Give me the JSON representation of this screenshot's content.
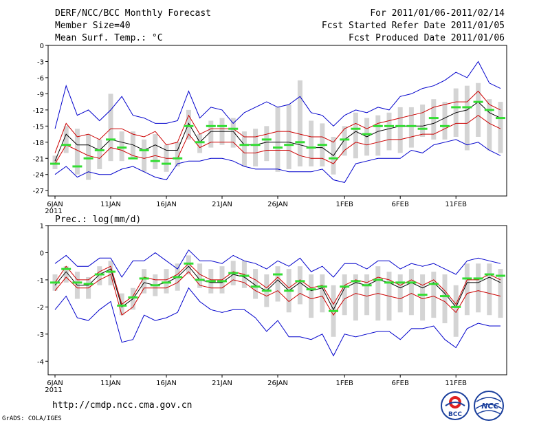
{
  "header": {
    "title": "DERF/NCC/BCC Monthly Forecast",
    "member_size": "Member Size=40",
    "variable1": "Mean Surf. Temp.: °C",
    "period": "For 2011/01/06-2011/02/14",
    "started": "Fcst Started Refer Date 2011/01/05",
    "produced": "Fcst Produced Date 2011/01/06"
  },
  "footer": {
    "url": "http://cmdp.ncc.cma.gov.cn",
    "grads": "GrADS: COLA/IGES",
    "logo1_text": "BCC",
    "logo2_text": "NCC"
  },
  "colors": {
    "envelope": "#0000cc",
    "spread": "#cc0000",
    "mean": "#000000",
    "bars": "#d4d4d4",
    "observed": "#33dd33"
  },
  "chart_data": [
    {
      "type": "line",
      "title": "Mean Surf. Temp.: °C",
      "ylabel": "°C",
      "ylim": [
        -28,
        0
      ],
      "yticks": [
        0,
        -3,
        -6,
        -9,
        -12,
        -15,
        -18,
        -21,
        -24,
        -27
      ],
      "x_days": 40,
      "xticks": [
        {
          "day": 0,
          "label": "6JAN",
          "sub": "2011"
        },
        {
          "day": 5,
          "label": "11JAN"
        },
        {
          "day": 10,
          "label": "16JAN"
        },
        {
          "day": 15,
          "label": "21JAN"
        },
        {
          "day": 20,
          "label": "26JAN"
        },
        {
          "day": 26,
          "label": "1FEB"
        },
        {
          "day": 31,
          "label": "6FEB"
        },
        {
          "day": 36,
          "label": "11FEB"
        }
      ],
      "series": [
        {
          "name": "member max",
          "values": [
            -15.5,
            -7.5,
            -13,
            -12,
            -14,
            -12,
            -9.5,
            -13,
            -13.5,
            -14.5,
            -14.5,
            -14,
            -8.5,
            -13.5,
            -11.5,
            -12,
            -14.5,
            -12.5,
            -11.5,
            -10.5,
            -11.5,
            -11,
            -9.5,
            -12.5,
            -13,
            -15,
            -13,
            -12,
            -12.5,
            -11.5,
            -12,
            -9.5,
            -9,
            -8,
            -7.5,
            -6.5,
            -5,
            -6,
            -3,
            -7,
            -8
          ]
        },
        {
          "name": "upper spread",
          "values": [
            -20,
            -14.5,
            -17,
            -16.5,
            -17.5,
            -15.5,
            -15.5,
            -16.5,
            -17,
            -16,
            -18.5,
            -18,
            -13,
            -16.5,
            -15.5,
            -15.5,
            -15.5,
            -17,
            -17,
            -16.5,
            -16,
            -16,
            -16.5,
            -17,
            -17,
            -18,
            -15.5,
            -14.5,
            -15.5,
            -14.5,
            -14,
            -13.5,
            -13,
            -12.5,
            -11.5,
            -11,
            -10.5,
            -10.5,
            -8.5,
            -11,
            -12
          ]
        },
        {
          "name": "ensemble mean",
          "values": [
            -21.5,
            -16.5,
            -18.5,
            -18.5,
            -19.5,
            -17.5,
            -18,
            -18.5,
            -19.5,
            -18.5,
            -19.5,
            -19.5,
            -14.5,
            -18,
            -16,
            -16,
            -16,
            -18.5,
            -18.5,
            -18,
            -18,
            -18,
            -18.5,
            -19,
            -19,
            -20.5,
            -17.5,
            -16,
            -17,
            -16,
            -15.5,
            -15,
            -15,
            -15,
            -14.5,
            -13.5,
            -12.5,
            -12,
            -10.5,
            -12.5,
            -13.5
          ]
        },
        {
          "name": "lower spread",
          "values": [
            -22,
            -18.5,
            -19.5,
            -20.5,
            -21,
            -19,
            -19.5,
            -20.5,
            -21,
            -20.5,
            -21,
            -21,
            -16.5,
            -19,
            -18,
            -18,
            -18,
            -20,
            -20,
            -19.5,
            -19.5,
            -19.5,
            -20.5,
            -21,
            -21,
            -22,
            -19.5,
            -18,
            -18.5,
            -18,
            -17.5,
            -17.5,
            -17,
            -16.5,
            -16.5,
            -15.5,
            -14.5,
            -14.5,
            -13,
            -14.5,
            -15.5
          ]
        },
        {
          "name": "member min",
          "values": [
            -24,
            -22.5,
            -24.5,
            -23.5,
            -24,
            -24,
            -23,
            -22.5,
            -23.5,
            -24.5,
            -25,
            -22,
            -21.5,
            -21.5,
            -21,
            -21,
            -21.5,
            -22.5,
            -23,
            -23,
            -23,
            -23.5,
            -23.5,
            -23.5,
            -23,
            -25,
            -25.5,
            -22,
            -21.5,
            -21,
            -21,
            -21,
            -19.5,
            -20,
            -18.5,
            -18,
            -17.5,
            -18.5,
            -18,
            -19.5,
            -20.5
          ]
        }
      ],
      "bars_low": [
        -23,
        -20,
        -24,
        -25,
        -23,
        -21.5,
        -21.5,
        -21,
        -23.5,
        -23,
        -23.5,
        -22.5,
        -17.5,
        -20,
        -19,
        -18.5,
        -19,
        -22.5,
        -22.5,
        -21.5,
        -23.5,
        -23,
        -22.5,
        -22.5,
        -22.5,
        -24,
        -20.5,
        -21,
        -20.5,
        -20.5,
        -19.5,
        -20,
        -19,
        -17,
        -17.5,
        -17.5,
        -17,
        -19.5,
        -17,
        -19.5,
        -20
      ],
      "bars_high": [
        -20.5,
        -15,
        -15.5,
        -16.5,
        -17.5,
        -9,
        -16,
        -16,
        -17.5,
        -16.5,
        -18.5,
        -18,
        -12,
        -16.5,
        -14,
        -13.5,
        -13.5,
        -16,
        -15.5,
        -15,
        -11.5,
        -11,
        -6.5,
        -14,
        -14.5,
        -17,
        -15,
        -12.5,
        -13.5,
        -13,
        -12.5,
        -11.5,
        -11.5,
        -11,
        -10,
        -10.5,
        -8,
        -7.5,
        -7,
        -10,
        -10.5
      ],
      "observed": [
        -22,
        -18.5,
        -22.5,
        -21,
        -19.5,
        -17.5,
        -19,
        -21,
        -19.5,
        -21.5,
        -22,
        -21,
        -15,
        -18,
        -15,
        -15,
        -15.5,
        -18.5,
        -18.5,
        -17.5,
        -19,
        -18.5,
        -18,
        -19,
        -18.5,
        -21,
        -17.5,
        -15.5,
        -16.5,
        -15,
        -15,
        -15,
        -15,
        -15.5,
        -13.5,
        -15,
        -11.5,
        -11.5,
        -10.5,
        -12,
        -13.5
      ]
    },
    {
      "type": "line",
      "title": "Prec.: log(mm/d)",
      "ylabel": "log(mm/d)",
      "ylim": [
        -4.5,
        1
      ],
      "yticks": [
        1,
        0,
        -1,
        -2,
        -3,
        -4
      ],
      "x_days": 40,
      "xticks": [
        {
          "day": 0,
          "label": "6JAN",
          "sub": "2011"
        },
        {
          "day": 5,
          "label": "11JAN"
        },
        {
          "day": 10,
          "label": "16JAN"
        },
        {
          "day": 15,
          "label": "21JAN"
        },
        {
          "day": 20,
          "label": "26JAN"
        },
        {
          "day": 26,
          "label": "1FEB"
        },
        {
          "day": 31,
          "label": "6FEB"
        },
        {
          "day": 36,
          "label": "11FEB"
        }
      ],
      "series": [
        {
          "name": "member max",
          "values": [
            -0.4,
            -0.1,
            -0.5,
            -0.5,
            -0.2,
            -0.2,
            -0.9,
            -0.3,
            -0.3,
            0,
            -0.3,
            -0.6,
            0.1,
            -0.3,
            -0.3,
            -0.4,
            -0.1,
            -0.3,
            -0.4,
            -0.6,
            -0.3,
            -0.5,
            -0.2,
            -0.7,
            -0.5,
            -0.9,
            -0.4,
            -0.4,
            -0.6,
            -0.3,
            -0.3,
            -0.6,
            -0.4,
            -0.5,
            -0.4,
            -0.6,
            -0.8,
            -0.3,
            -0.2,
            -0.3,
            -0.4
          ]
        },
        {
          "name": "upper spread",
          "values": [
            -1.1,
            -0.5,
            -1,
            -1,
            -0.7,
            -0.5,
            -1.9,
            -1.6,
            -0.9,
            -1,
            -1,
            -0.8,
            -0.4,
            -0.8,
            -1,
            -1,
            -0.7,
            -0.8,
            -1,
            -1.3,
            -0.9,
            -1.3,
            -1,
            -1.3,
            -1.2,
            -1.9,
            -1.2,
            -1,
            -1.1,
            -0.9,
            -1,
            -1.2,
            -1,
            -1.2,
            -1,
            -1.4,
            -1.9,
            -1,
            -1,
            -0.8,
            -1
          ]
        },
        {
          "name": "ensemble mean",
          "values": [
            -1.2,
            -0.7,
            -1.2,
            -1.2,
            -0.8,
            -0.6,
            -2,
            -1.7,
            -1.1,
            -1.2,
            -1.1,
            -0.9,
            -0.5,
            -1,
            -1.1,
            -1.1,
            -0.8,
            -0.9,
            -1.2,
            -1.4,
            -1,
            -1.4,
            -1.1,
            -1.4,
            -1.3,
            -2.1,
            -1.3,
            -1.1,
            -1.2,
            -1,
            -1.1,
            -1.3,
            -1.1,
            -1.3,
            -1.1,
            -1.5,
            -2,
            -1.1,
            -1.1,
            -0.9,
            -1.1
          ]
        },
        {
          "name": "lower spread",
          "values": [
            -1.4,
            -0.9,
            -1.3,
            -1.3,
            -1,
            -0.8,
            -2.3,
            -2,
            -1.3,
            -1.3,
            -1.3,
            -1.1,
            -0.7,
            -1.2,
            -1.3,
            -1.3,
            -1,
            -1.1,
            -1.4,
            -1.6,
            -1.4,
            -1.8,
            -1.5,
            -1.7,
            -1.6,
            -2.3,
            -1.7,
            -1.5,
            -1.6,
            -1.5,
            -1.6,
            -1.7,
            -1.5,
            -1.7,
            -1.6,
            -1.8,
            -2.2,
            -1.5,
            -1.4,
            -1.5,
            -1.6
          ]
        },
        {
          "name": "member min",
          "values": [
            -2.1,
            -1.6,
            -2.4,
            -2.5,
            -2.1,
            -1.8,
            -3.3,
            -3.2,
            -2.3,
            -2.5,
            -2.4,
            -2.2,
            -1.3,
            -1.8,
            -2.1,
            -2.2,
            -2.1,
            -2.1,
            -2.4,
            -2.9,
            -2.5,
            -3.1,
            -3.1,
            -3.2,
            -3,
            -3.8,
            -3,
            -3.1,
            -3,
            -2.9,
            -2.9,
            -3.2,
            -2.8,
            -2.8,
            -2.7,
            -3.2,
            -3.5,
            -2.8,
            -2.6,
            -2.7,
            -2.7
          ]
        }
      ],
      "bars_low": [
        -1.4,
        -1.1,
        -1.7,
        -1.7,
        -1.2,
        -1.2,
        -2.3,
        -2.1,
        -1.5,
        -1.6,
        -1.5,
        -1.4,
        -0.8,
        -1.3,
        -1.5,
        -1.5,
        -1.2,
        -1.3,
        -1.7,
        -2,
        -1.8,
        -2.2,
        -1.9,
        -2.4,
        -2.2,
        -3.1,
        -2.3,
        -2.5,
        -2.3,
        -2.5,
        -2.5,
        -2.2,
        -2.3,
        -2.5,
        -2.4,
        -2.6,
        -3.1,
        -2.3,
        -2.2,
        -2.3,
        -2.4
      ],
      "bars_high": [
        -0.8,
        -0.5,
        -0.7,
        -0.9,
        -0.5,
        -0.3,
        -1.5,
        -1.3,
        -0.6,
        -0.8,
        -0.6,
        -0.4,
        -0.1,
        -0.4,
        -0.6,
        -0.5,
        -0.3,
        -0.3,
        -0.6,
        -0.8,
        -0.5,
        -0.6,
        -0.5,
        -0.8,
        -0.8,
        -1.2,
        -0.8,
        -0.8,
        -0.8,
        -0.5,
        -0.7,
        -0.8,
        -0.6,
        -0.8,
        -0.7,
        -0.8,
        -1.2,
        -0.4,
        -0.4,
        -0.4,
        -0.6
      ],
      "observed": [
        -1.1,
        -0.6,
        -1.1,
        -1.15,
        -0.8,
        -0.7,
        -1.95,
        -1.65,
        -0.95,
        -1.2,
        -1.1,
        -0.9,
        -0.4,
        -1,
        -1.05,
        -1.05,
        -0.75,
        -0.85,
        -1.25,
        -1.4,
        -0.8,
        -1.4,
        -1.05,
        -1.35,
        -1.25,
        -2.15,
        -1.25,
        -1.05,
        -1.2,
        -1,
        -1.1,
        -1.1,
        -1.1,
        -1.55,
        -1.15,
        -1.6,
        -2,
        -0.95,
        -0.95,
        -0.8,
        -0.85
      ]
    }
  ]
}
